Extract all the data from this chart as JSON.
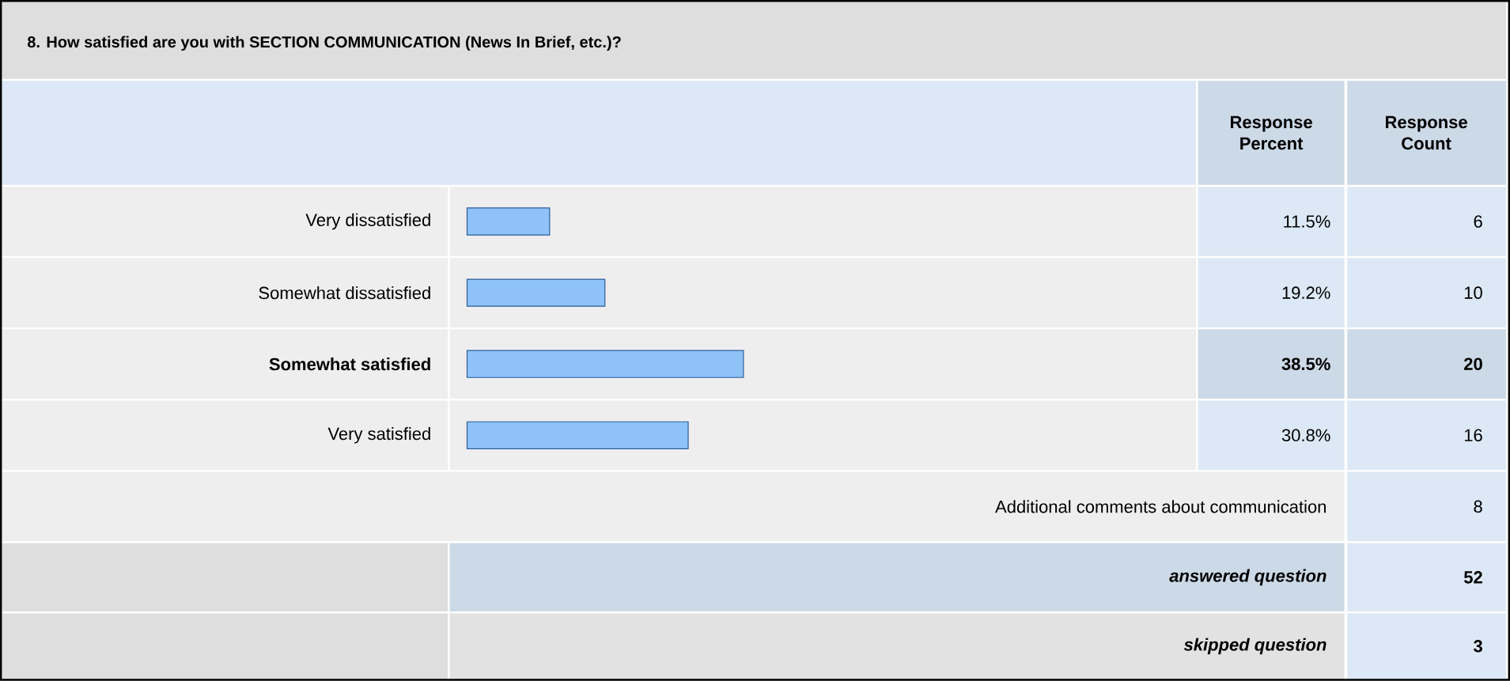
{
  "chart_data": {
    "type": "bar",
    "orientation": "horizontal",
    "title": "8. How satisfied are you with SECTION COMMUNICATION (News In Brief, etc.)?",
    "categories": [
      "Very dissatisfied",
      "Somewhat dissatisfied",
      "Somewhat satisfied",
      "Very satisfied"
    ],
    "values": [
      11.5,
      19.2,
      38.5,
      30.8
    ],
    "value_labels": [
      "11.5%",
      "19.2%",
      "38.5%",
      "30.8%"
    ],
    "color": "#8fc3f8",
    "tick_labels": "y",
    "annotations": [
      "Response Percent",
      "Response Count",
      "6",
      "10",
      "20",
      "16",
      "Additional comments about communication",
      "8",
      "answered question",
      "52",
      "skipped question",
      "3"
    ]
  }
}
